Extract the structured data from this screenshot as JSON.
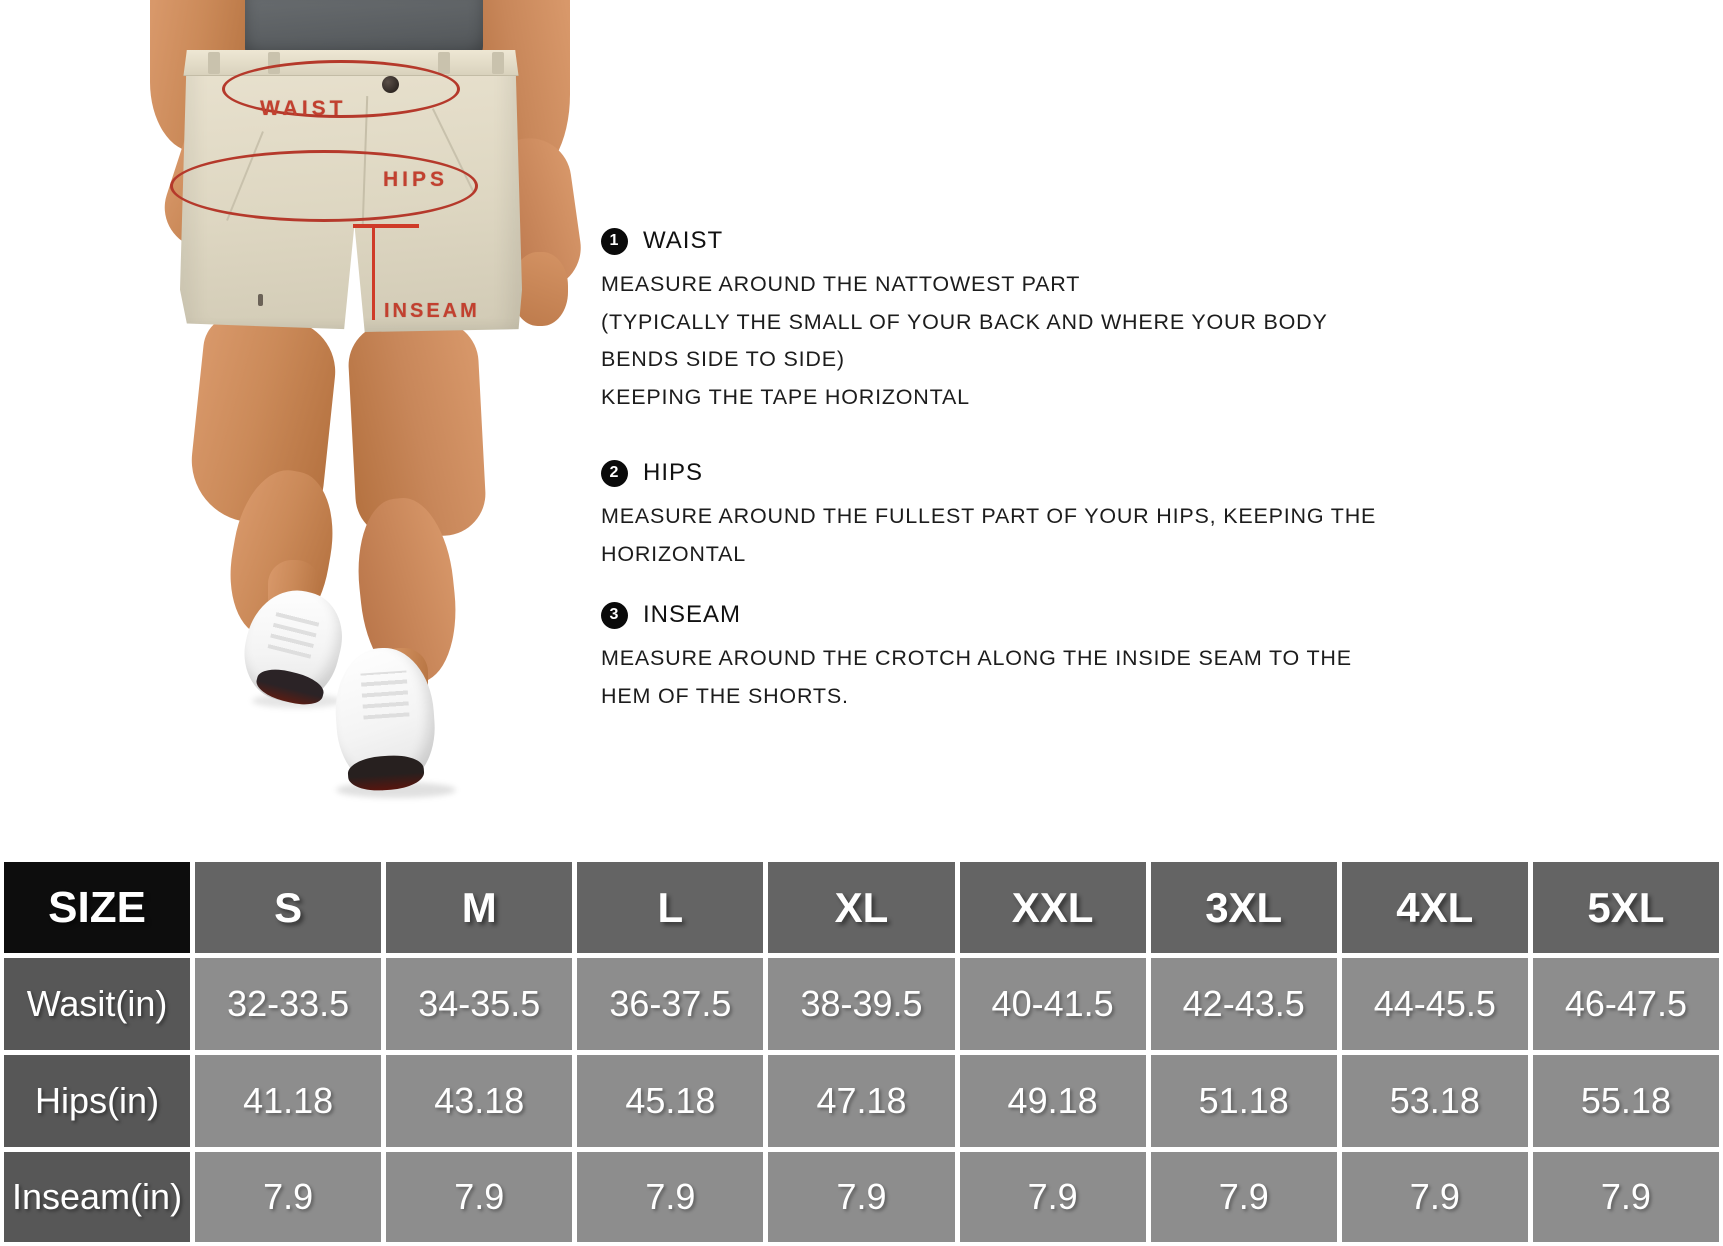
{
  "colors": {
    "accent_red": "#c2402f",
    "table_header_black": "#0d0d0d",
    "table_header_gray": "#646464",
    "table_label_gray": "#575757",
    "table_cell_gray": "#8d8d8d",
    "grid_white": "#ffffff"
  },
  "photo": {
    "waist_label": "WAIST",
    "hips_label": "HIPS",
    "inseam_label": "INSEAM"
  },
  "instructions": [
    {
      "num": "1",
      "title": "WAIST",
      "lines": [
        "MEASURE AROUND THE NATTOWEST PART",
        "(TYPICALLY THE SMALL OF YOUR BACK AND WHERE YOUR BODY",
        "BENDS SIDE TO SIDE)",
        "KEEPING THE TAPE HORIZONTAL"
      ]
    },
    {
      "num": "2",
      "title": "HIPS",
      "lines": [
        "MEASURE AROUND THE FULLEST PART OF YOUR HIPS, KEEPING THE",
        "HORIZONTAL"
      ]
    },
    {
      "num": "3",
      "title": "INSEAM",
      "lines": [
        "MEASURE AROUND THE CROTCH ALONG THE INSIDE SEAM TO THE",
        "HEM OF THE SHORTS."
      ]
    }
  ],
  "table": {
    "header": [
      "SIZE",
      "S",
      "M",
      "L",
      "XL",
      "XXL",
      "3XL",
      "4XL",
      "5XL"
    ],
    "rows": [
      {
        "label": "Wasit(in)",
        "values": [
          "32-33.5",
          "34-35.5",
          "36-37.5",
          "38-39.5",
          "40-41.5",
          "42-43.5",
          "44-45.5",
          "46-47.5"
        ]
      },
      {
        "label": "Hips(in)",
        "values": [
          "41.18",
          "43.18",
          "45.18",
          "47.18",
          "49.18",
          "51.18",
          "53.18",
          "55.18"
        ]
      },
      {
        "label": "Inseam(in)",
        "values": [
          "7.9",
          "7.9",
          "7.9",
          "7.9",
          "7.9",
          "7.9",
          "7.9",
          "7.9"
        ]
      }
    ]
  }
}
